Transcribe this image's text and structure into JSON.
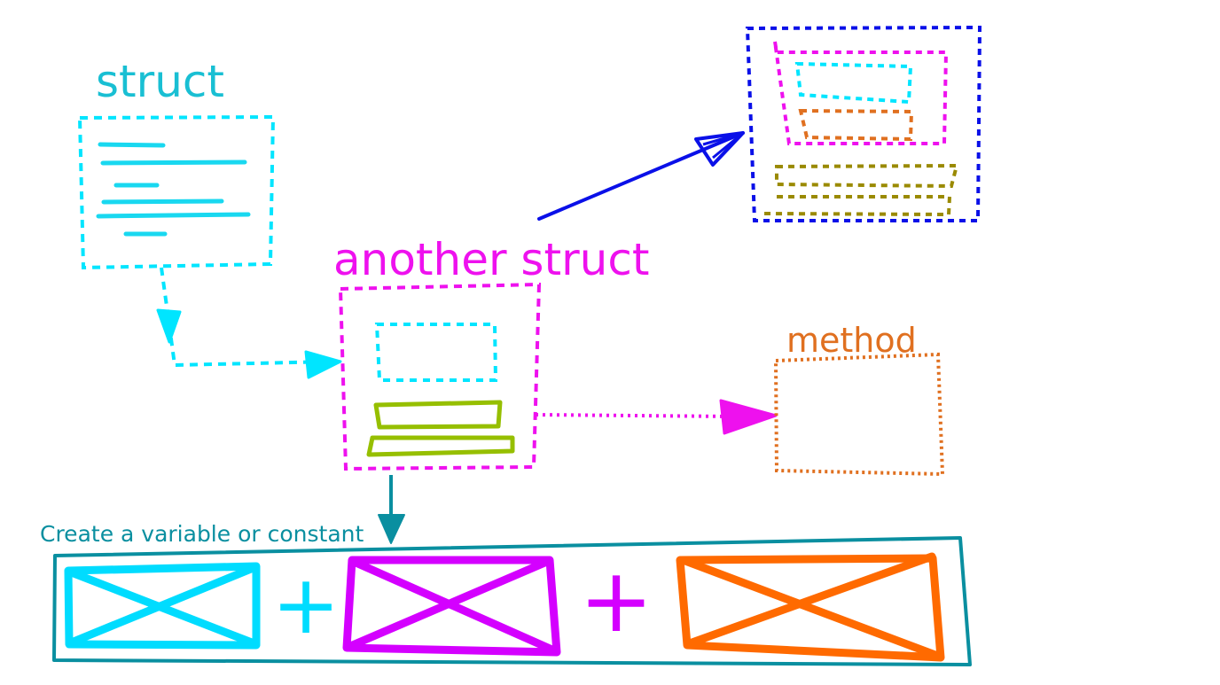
{
  "labels": {
    "struct": "struct",
    "another_struct": "another struct",
    "method": "method",
    "create_variable": "Create a variable or constant"
  },
  "operators": {
    "plus_1": "+",
    "plus_2": "+"
  },
  "colors": {
    "struct": "#19bfd3",
    "cyan": "#00e5ff",
    "magenta": "#ee11ee",
    "orange": "#e07020",
    "blue": "#0a10e8",
    "teal": "#0a8fa0",
    "olive_green": "#96bf00",
    "olive": "#9a8a00",
    "cyan_box": "#00dcff",
    "purple_box": "#d400ff",
    "orange_box": "#ff6a00"
  }
}
